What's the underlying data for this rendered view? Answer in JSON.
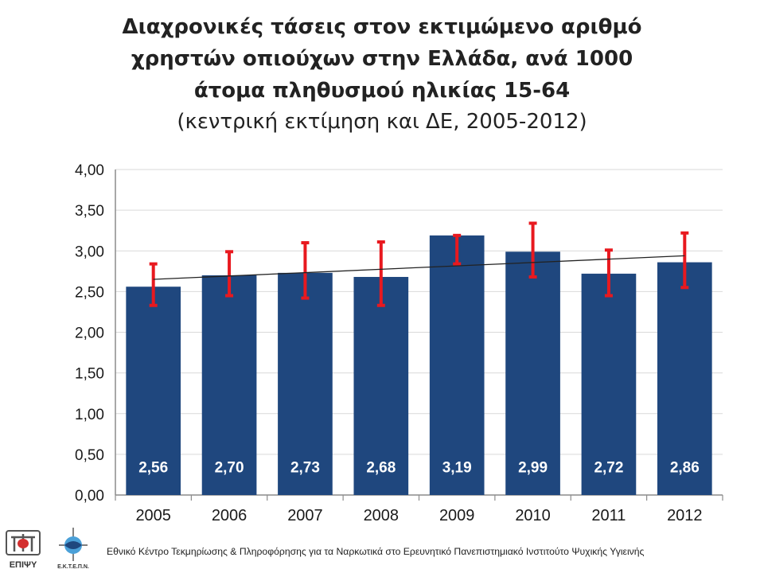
{
  "title": {
    "line1": "Διαχρονικές τάσεις στον εκτιμώμενο αριθμό",
    "line2": "χρηστών οπιούχων στην Ελλάδα, ανά 1000",
    "line3": "άτομα πληθυσμού ηλικίας 15-64",
    "subtitle": "(κεντρική εκτίμηση και ΔΕ, 2005-2012)"
  },
  "chart_data": {
    "type": "bar",
    "categories": [
      "2005",
      "2006",
      "2007",
      "2008",
      "2009",
      "2010",
      "2011",
      "2012"
    ],
    "values": [
      2.56,
      2.7,
      2.73,
      2.68,
      3.19,
      2.99,
      2.72,
      2.86
    ],
    "value_labels": [
      "2,56",
      "2,70",
      "2,73",
      "2,68",
      "3,19",
      "2,99",
      "2,72",
      "2,86"
    ],
    "error_low": [
      2.33,
      2.45,
      2.42,
      2.33,
      2.84,
      2.68,
      2.45,
      2.55
    ],
    "error_high": [
      2.84,
      2.99,
      3.1,
      3.11,
      3.19,
      3.34,
      3.01,
      3.22
    ],
    "trendline": {
      "start": 2.65,
      "end": 2.94
    },
    "ylim": [
      0,
      4
    ],
    "yticks": [
      "0,00",
      "0,50",
      "1,00",
      "1,50",
      "2,00",
      "2,50",
      "3,00",
      "3,50",
      "4,00"
    ],
    "grid": true,
    "legend": "none"
  },
  "colors": {
    "bar": "#1f477e",
    "error_bar": "#e8191f",
    "trendline": "#222222",
    "gridline": "#d9d9d9",
    "axis": "#8c8c8c"
  },
  "footer": {
    "logo1_text": "ΕΠΙΨΥ",
    "logo2_text": "Ε.Κ.Τ.Ε.Π.Ν.",
    "text": "Εθνικό Κέντρο Τεκμηρίωσης & Πληροφόρησης για τα Ναρκωτικά στο Ερευνητικό Πανεπιστημιακό Ινστιτούτο Ψυχικής Υγιεινής"
  }
}
